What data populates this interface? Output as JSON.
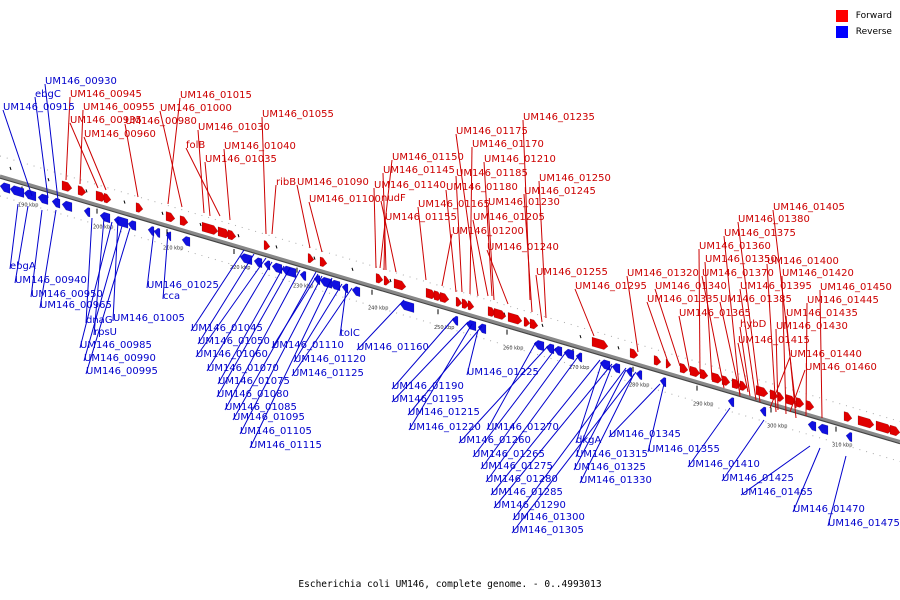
{
  "caption": "Escherichia coli UM146, complete genome. - 0..4993013",
  "legend": [
    {
      "label": "Forward",
      "color": "#ff0000"
    },
    {
      "label": "Reverse",
      "color": "#0000ff"
    }
  ],
  "colors": {
    "forward": "#e00000",
    "reverse": "#1010e0",
    "forward_label": "#cc0000",
    "reverse_label": "#0000cc",
    "backbone": "#888888"
  },
  "tick_labels": [
    "190 kbp",
    "200 kbp",
    "210 kbp",
    "220 kbp",
    "230 kbp",
    "240 kbp",
    "250 kbp",
    "260 kbp",
    "270 kbp",
    "280 kbp",
    "290 kbp",
    "300 kbp",
    "310 kbp"
  ],
  "forward_labels": [
    "UM146_00945",
    "UM146_00955",
    "UM146_00935",
    "UM146_00960",
    "UM146_00980",
    "UM146_01015",
    "UM146_01000",
    "UM146_01030",
    "folB",
    "UM146_01040",
    "UM146_01035",
    "UM146_01055",
    "ribB",
    "UM146_01090",
    "UM146_01100",
    "UM146_01235",
    "UM146_01175",
    "UM146_01170",
    "UM146_01150",
    "UM146_01210",
    "UM146_01145",
    "UM146_01185",
    "UM146_01140",
    "UM146_01180",
    "nudF",
    "UM146_01250",
    "UM146_01245",
    "UM146_01165",
    "UM146_01230",
    "UM146_01155",
    "UM146_01205",
    "UM146_01200",
    "UM146_01240",
    "UM146_01255",
    "UM146_01295",
    "UM146_01405",
    "UM146_01380",
    "UM146_01375",
    "UM146_01360",
    "UM146_01350",
    "UM146_01400",
    "UM146_01320",
    "UM146_01370",
    "UM146_01420",
    "UM146_01340",
    "UM146_01395",
    "UM146_01450",
    "UM146_01335",
    "UM146_01385",
    "UM146_01445",
    "UM146_01365",
    "UM146_01435",
    "hybD",
    "UM146_01430",
    "UM146_01415",
    "UM146_01440",
    "UM146_01460"
  ],
  "reverse_labels": [
    "UM146_00930",
    "ebgC",
    "UM146_00915",
    "ebgA",
    "UM146_00940",
    "UM146_00950",
    "UM146_00965",
    "dnaG",
    "UM146_01005",
    "rpsU",
    "UM146_00985",
    "UM146_00990",
    "UM146_00995",
    "UM146_01025",
    "cca",
    "UM146_01045",
    "UM146_01050",
    "UM146_01060",
    "UM146_01070",
    "UM146_01075",
    "UM146_01080",
    "UM146_01085",
    "UM146_01095",
    "UM146_01105",
    "UM146_01115",
    "UM146_01110",
    "UM146_01120",
    "UM146_01125",
    "tolC",
    "UM146_01160",
    "UM146_01190",
    "UM146_01195",
    "UM146_01215",
    "UM146_01220",
    "UM146_01225",
    "UM146_01270",
    "UM146_01260",
    "UM146_01265",
    "UM146_01275",
    "UM146_01280",
    "UM146_01285",
    "UM146_01290",
    "UM146_01300",
    "UM146_01305",
    "dkgA",
    "UM146_01315",
    "UM146_01325",
    "UM146_01330",
    "UM146_01345",
    "UM146_01355",
    "UM146_01410",
    "UM146_01425",
    "UM146_01465",
    "UM146_01470",
    "UM146_01475"
  ]
}
